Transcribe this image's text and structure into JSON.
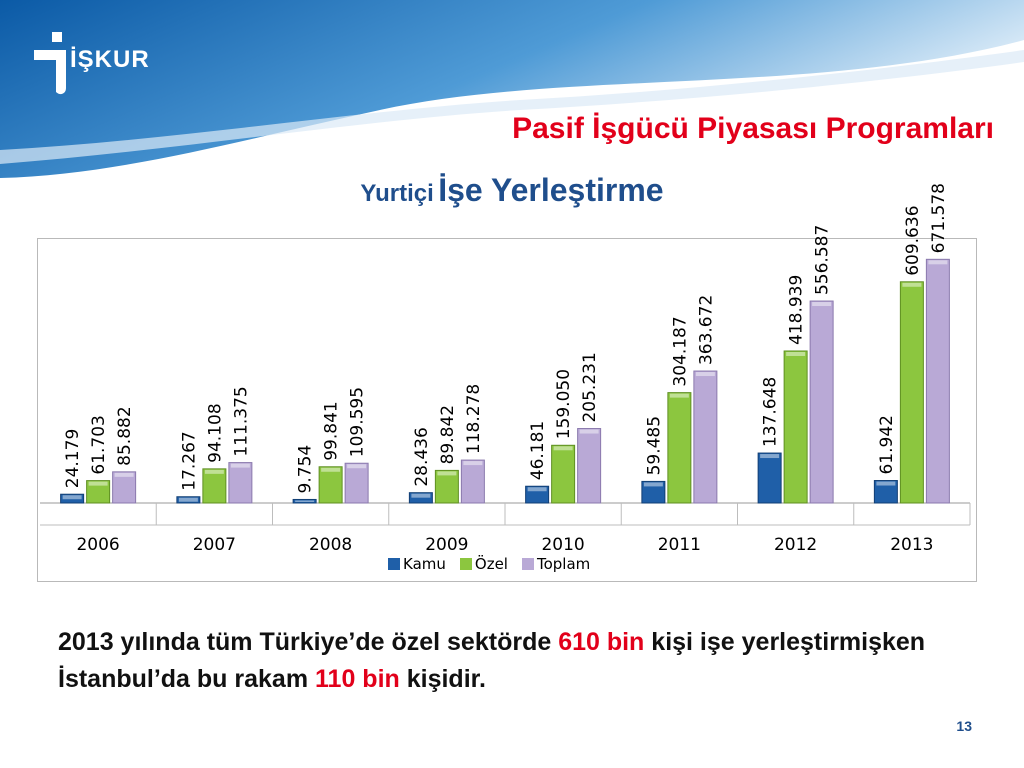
{
  "header": {
    "logo_text": "İŞKUR",
    "title": "Pasif İşgücü Piyasası Programları",
    "subtitle_a": "Yurtiçi",
    "subtitle_b": "İşe Yerleştirme"
  },
  "colors": {
    "kamu": "#1f5fa8",
    "ozel": "#8cc63f",
    "toplam": "#b9a9d6",
    "accent_red": "#e2001a",
    "brand_blue": "#1f4e8c"
  },
  "chart_data": {
    "type": "bar",
    "categories": [
      "2006",
      "2007",
      "2008",
      "2009",
      "2010",
      "2011",
      "2012",
      "2013"
    ],
    "series": [
      {
        "name": "Kamu",
        "values": [
          24179,
          17267,
          9754,
          28436,
          46181,
          59485,
          137648,
          61942
        ],
        "labels": [
          "24.179",
          "17.267",
          "9.754",
          "28.436",
          "46.181",
          "59.485",
          "137.648",
          "61.942"
        ]
      },
      {
        "name": "Özel",
        "values": [
          61703,
          94108,
          99841,
          89842,
          159050,
          304187,
          418939,
          609636
        ],
        "labels": [
          "61.703",
          "94.108",
          "99.841",
          "89.842",
          "159.050",
          "304.187",
          "418.939",
          "609.636"
        ]
      },
      {
        "name": "Toplam",
        "values": [
          85882,
          111375,
          109595,
          118278,
          205231,
          363672,
          556587,
          671578
        ],
        "labels": [
          "85.882",
          "111.375",
          "109.595",
          "118.278",
          "205.231",
          "363.672",
          "556.587",
          "671.578"
        ]
      }
    ],
    "ylim": [
      0,
      700000
    ],
    "grid": false,
    "legend_position": "bottom"
  },
  "note": {
    "part1": "2013 yılında tüm Türkiye’de özel sektörde ",
    "hl1": "610 bin",
    "part2": " kişi işe yerleştirmişken İstanbul’da bu rakam ",
    "hl2": "110 bin",
    "part3": " kişidir."
  },
  "page_number": "13"
}
